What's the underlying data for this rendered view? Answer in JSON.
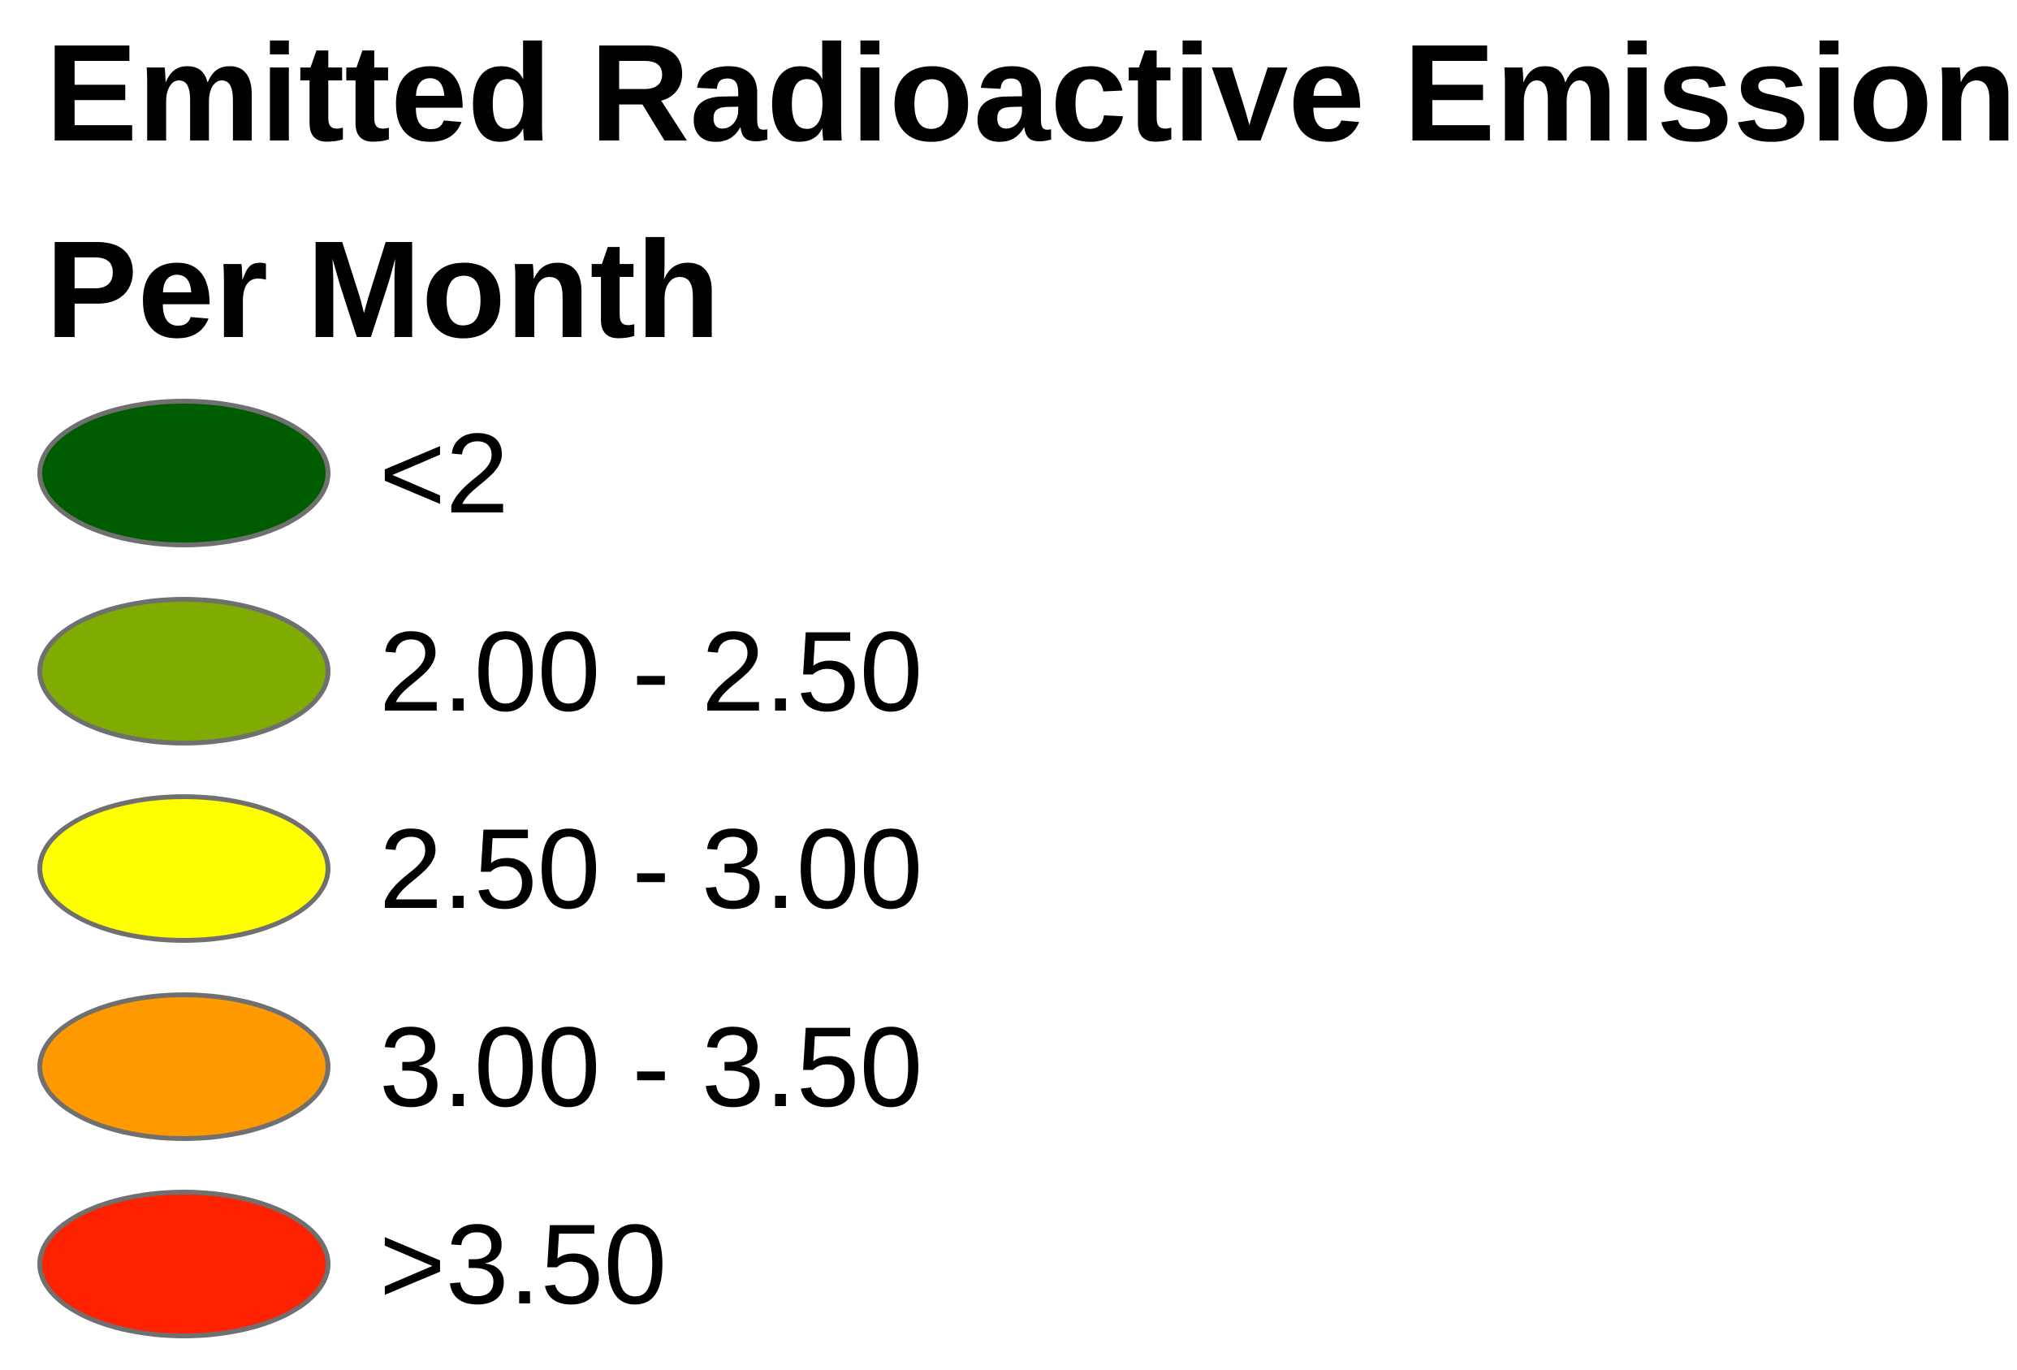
{
  "legend": {
    "title": "Emitted Radioactive Emission",
    "subtitle": "Per Month",
    "items": [
      {
        "label": "<2",
        "color": "#005c00"
      },
      {
        "label": "2.00 - 2.50",
        "color": "#80ab00"
      },
      {
        "label": "2.50 - 3.00",
        "color": "#ffff00"
      },
      {
        "label": "3.00 - 3.50",
        "color": "#ff9900"
      },
      {
        "label": ">3.50",
        "color": "#ff2200"
      }
    ]
  }
}
